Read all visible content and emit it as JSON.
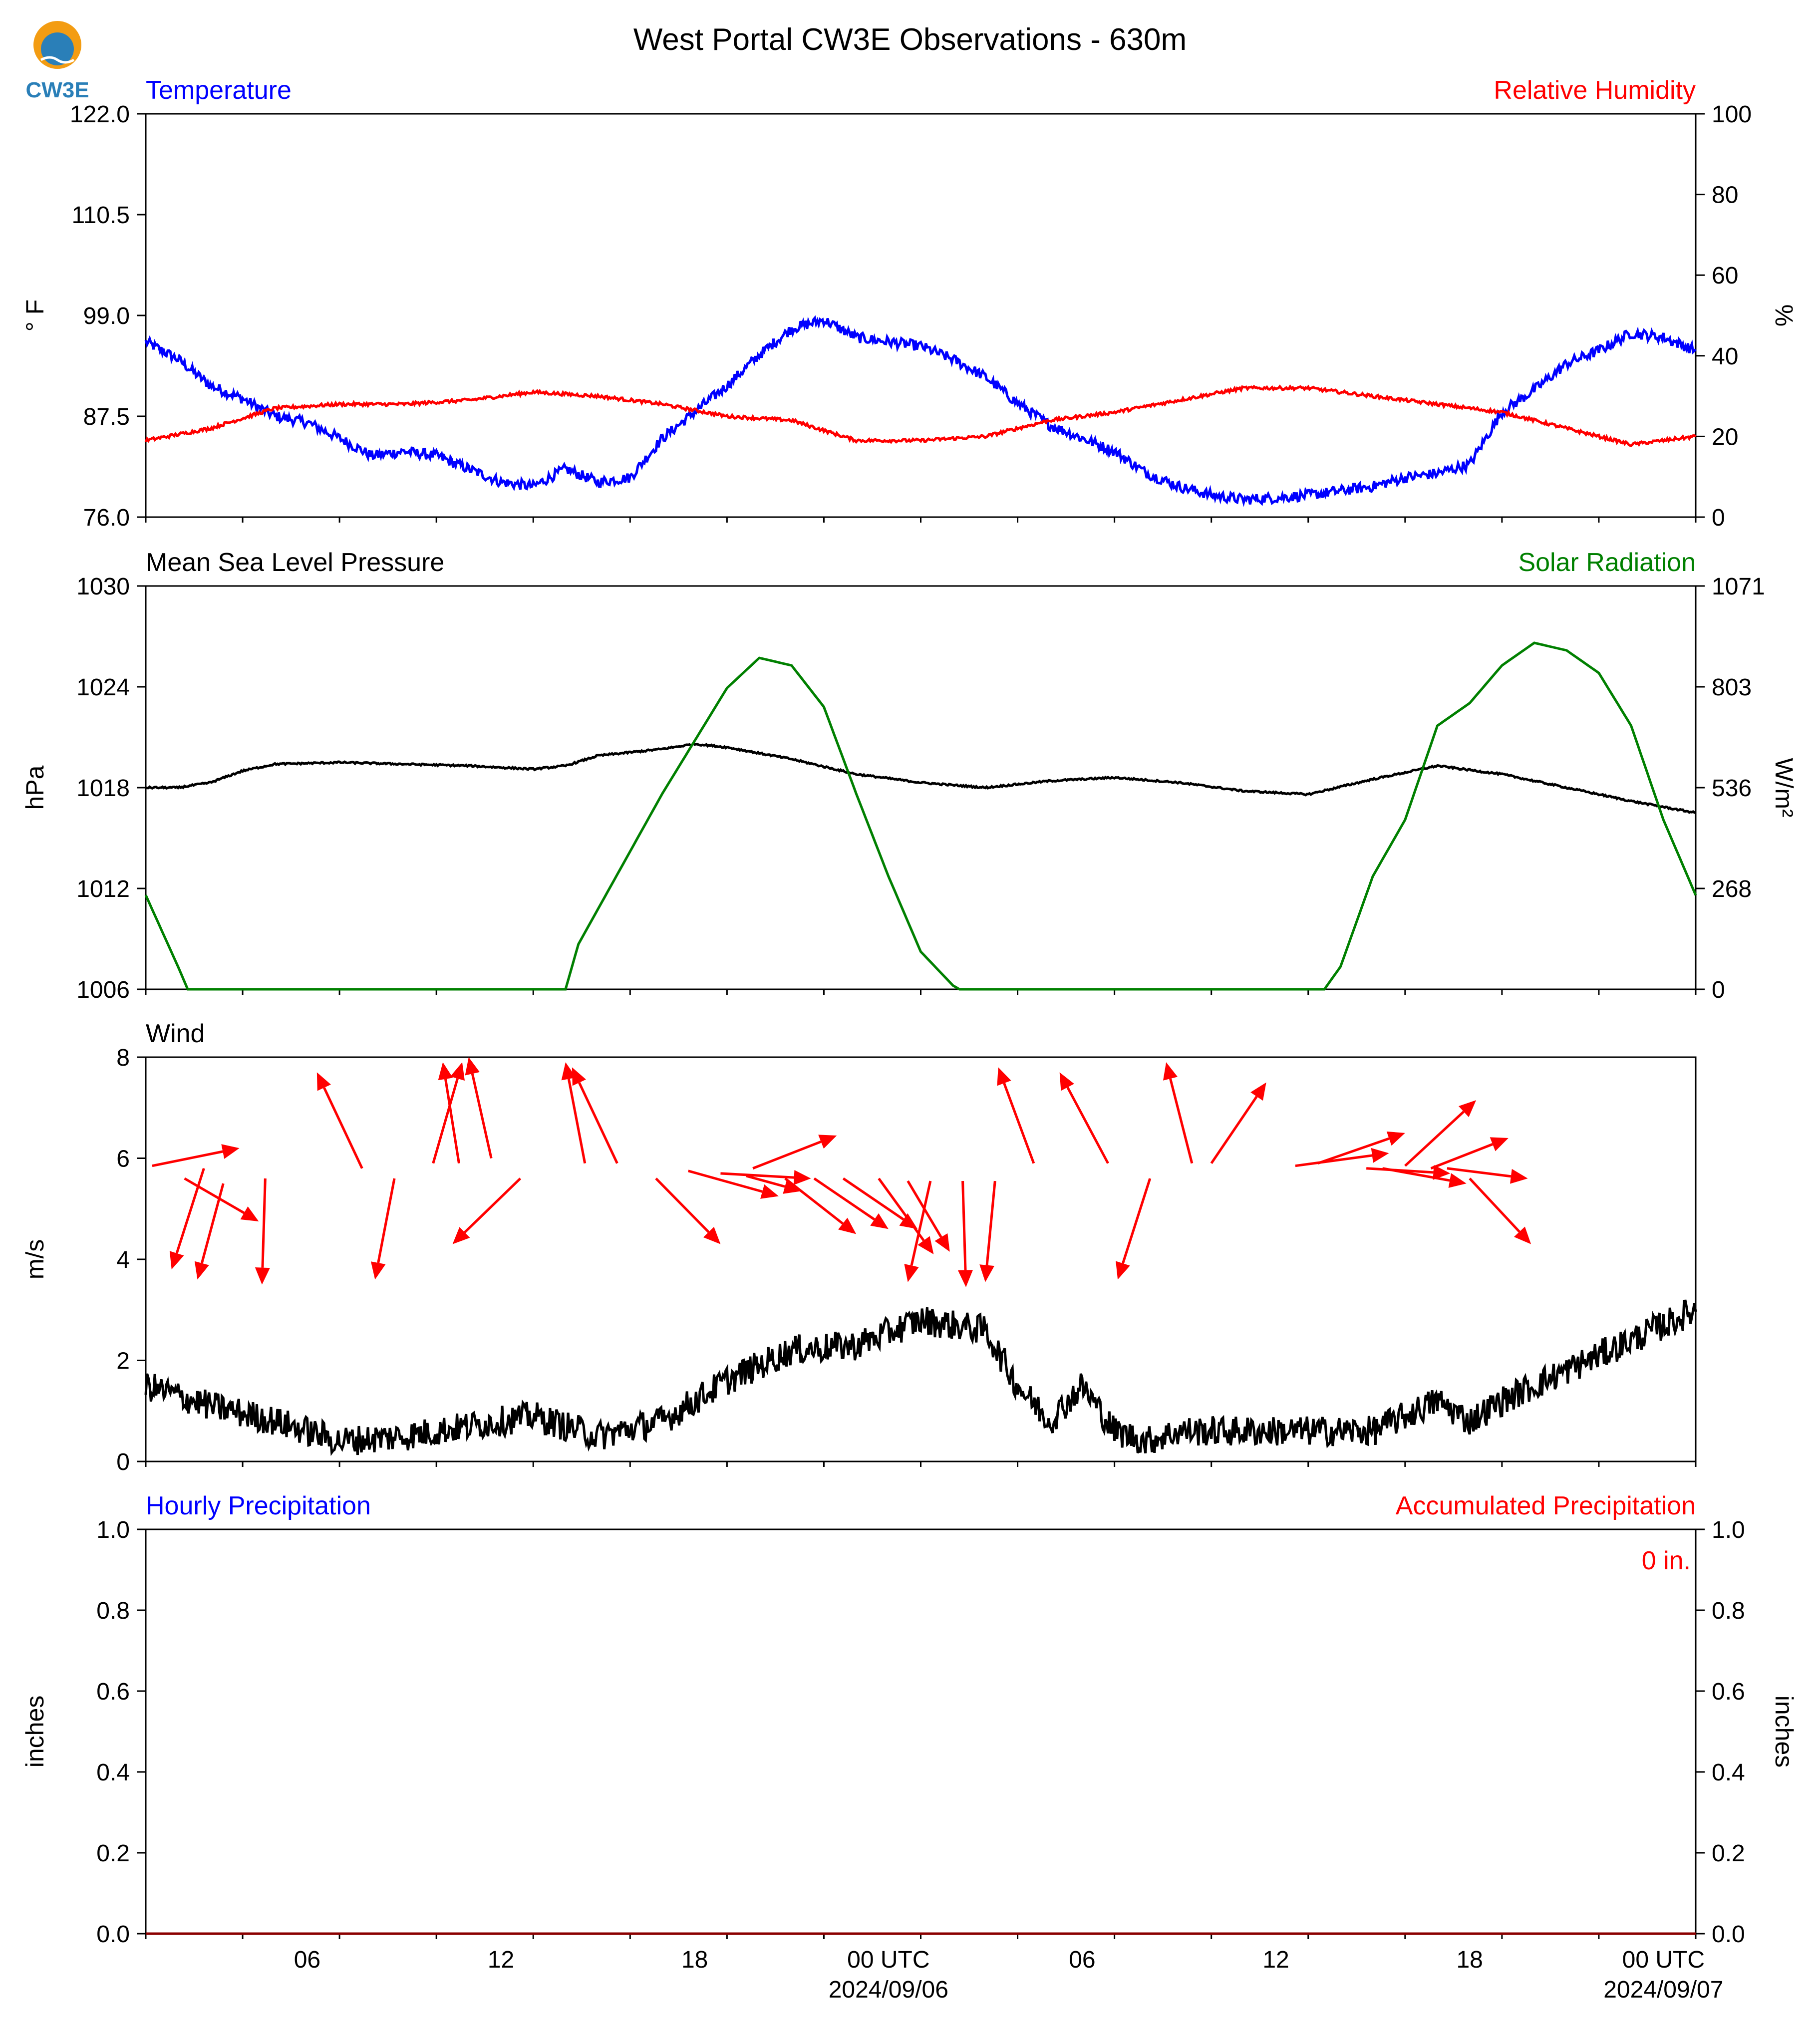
{
  "title": "West Portal CW3E Observations - 630m",
  "logo": {
    "text": "CW3E",
    "color": "#2a7fb8",
    "accent": "#f39c12"
  },
  "x_axis": {
    "range_hours_from_start": [
      0,
      48
    ],
    "tick_labels": [
      "06",
      "12",
      "18",
      "00 UTC",
      "06",
      "12",
      "18",
      "00 UTC"
    ],
    "date_labels": [
      "2024/09/06",
      "2024/09/07"
    ]
  },
  "chart_data": [
    {
      "type": "line",
      "left_title": "Temperature",
      "right_title": "Relative Humidity",
      "ylabel_left": "° F",
      "ylabel_right": "%",
      "ylim_left": [
        76.0,
        122.0
      ],
      "ylim_right": [
        0,
        100
      ],
      "yticks_left": [
        "76.0",
        "87.5",
        "99.0",
        "110.5",
        "122.0"
      ],
      "yticks_right": [
        "0",
        "20",
        "40",
        "60",
        "80",
        "100"
      ],
      "series": [
        {
          "axis": "left",
          "color": "#0000ff",
          "x": [
            0,
            1,
            2,
            3,
            4,
            5,
            6,
            7,
            8,
            9,
            10,
            11,
            12,
            13,
            14,
            15,
            16,
            17,
            18,
            19,
            20,
            21,
            22,
            23,
            24,
            25,
            26,
            27,
            28,
            29,
            30,
            31,
            32,
            33,
            34,
            35,
            36,
            37,
            38,
            39,
            40,
            41,
            42,
            43,
            44,
            45,
            46,
            47,
            48
          ],
          "values": [
            96.0,
            94.0,
            91.0,
            89.5,
            87.5,
            86.8,
            85.0,
            83.0,
            83.5,
            83.0,
            81.5,
            80.0,
            79.5,
            81.5,
            80.0,
            80.5,
            85.0,
            88.0,
            91.0,
            94.5,
            97.5,
            98.5,
            96.5,
            96.0,
            95.5,
            94.0,
            92.0,
            89.0,
            86.5,
            85.0,
            83.5,
            81.0,
            79.5,
            78.5,
            78.0,
            78.2,
            78.5,
            79.0,
            79.5,
            80.5,
            81.0,
            82.0,
            88.0,
            90.5,
            93.5,
            95.0,
            97.0,
            96.5,
            95.0
          ],
          "noise": 0.6
        },
        {
          "axis": "right",
          "color": "#ff0000",
          "x": [
            0,
            2,
            4,
            6,
            8,
            10,
            12,
            14,
            16,
            18,
            20,
            22,
            24,
            26,
            28,
            30,
            32,
            34,
            36,
            38,
            40,
            42,
            44,
            46,
            48
          ],
          "values": [
            19,
            22,
            27,
            28,
            28,
            29,
            31,
            30,
            28,
            25,
            24,
            19,
            19,
            20,
            24,
            26,
            29,
            32,
            32,
            30,
            28,
            26,
            22,
            18,
            20
          ],
          "noise": 0.4
        }
      ]
    },
    {
      "type": "line",
      "left_title": "Mean Sea Level Pressure",
      "right_title": "Solar Radiation",
      "ylabel_left": "hPa",
      "ylabel_right": "W/m²",
      "ylim_left": [
        1006,
        1030
      ],
      "ylim_right": [
        0,
        1071
      ],
      "yticks_left": [
        "1006",
        "1012",
        "1018",
        "1024",
        "1030"
      ],
      "yticks_right": [
        "0",
        "268",
        "536",
        "803",
        "1071"
      ],
      "series": [
        {
          "axis": "left",
          "color": "#000000",
          "x": [
            0,
            1,
            2,
            3,
            4,
            6,
            8,
            10,
            12,
            13,
            14,
            16,
            17,
            18,
            20,
            22,
            24,
            26,
            28,
            30,
            32,
            34,
            36,
            38,
            40,
            42,
            44,
            46,
            48
          ],
          "values": [
            1018.0,
            1018.0,
            1018.3,
            1019.0,
            1019.4,
            1019.5,
            1019.4,
            1019.3,
            1019.1,
            1019.3,
            1019.9,
            1020.3,
            1020.6,
            1020.4,
            1019.7,
            1018.8,
            1018.3,
            1018.0,
            1018.4,
            1018.6,
            1018.3,
            1017.8,
            1017.6,
            1018.5,
            1019.3,
            1018.8,
            1018.0,
            1017.2,
            1016.5
          ],
          "noise": 0.05
        },
        {
          "axis": "right",
          "color": "#008000",
          "x": [
            0,
            1,
            1.3,
            13,
            13.4,
            16,
            18,
            19,
            20,
            21,
            22,
            23,
            24,
            25,
            25.2,
            36.5,
            37,
            38,
            39,
            40,
            41,
            42,
            43,
            44,
            45,
            46,
            47,
            48
          ],
          "values": [
            250,
            60,
            0,
            0,
            120,
            520,
            800,
            880,
            860,
            750,
            520,
            300,
            100,
            10,
            0,
            0,
            60,
            300,
            450,
            700,
            760,
            860,
            920,
            900,
            840,
            700,
            450,
            250
          ],
          "noise": 0
        }
      ]
    },
    {
      "type": "line",
      "left_title": "Wind",
      "ylabel_left": "m/s",
      "ylim_left": [
        0,
        8
      ],
      "yticks_left": [
        "0",
        "2",
        "4",
        "6",
        "8"
      ],
      "series": [
        {
          "axis": "left",
          "color": "#000000",
          "x": [
            0,
            2,
            4,
            6,
            8,
            10,
            12,
            14,
            16,
            18,
            20,
            22,
            24,
            26,
            27,
            28,
            29,
            30,
            31,
            32,
            34,
            36,
            38,
            40,
            41,
            42,
            44,
            46,
            48
          ],
          "values": [
            1.5,
            1.1,
            0.8,
            0.4,
            0.5,
            0.7,
            0.9,
            0.5,
            0.8,
            1.6,
            2.2,
            2.3,
            2.8,
            2.6,
            1.5,
            0.8,
            1.5,
            0.6,
            0.4,
            0.6,
            0.6,
            0.6,
            0.6,
            1.2,
            0.8,
            1.2,
            1.8,
            2.4,
            3.0
          ],
          "noise": 0.3
        }
      ],
      "arrows_color": "#ff0000",
      "arrows": [
        {
          "x": 0.2,
          "y": 5.85,
          "dx": 2.7,
          "dy": 0.35
        },
        {
          "x": 1.2,
          "y": 5.6,
          "dx": 2.3,
          "dy": -0.85
        },
        {
          "x": 1.8,
          "y": 5.8,
          "dx": -1.0,
          "dy": -2.0
        },
        {
          "x": 2.4,
          "y": 5.5,
          "dx": -0.8,
          "dy": -1.9
        },
        {
          "x": 3.7,
          "y": 5.6,
          "dx": -0.1,
          "dy": -2.1
        },
        {
          "x": 6.7,
          "y": 5.8,
          "dx": -1.4,
          "dy": 1.9
        },
        {
          "x": 7.7,
          "y": 5.6,
          "dx": -0.6,
          "dy": -2.0
        },
        {
          "x": 8.9,
          "y": 5.9,
          "dx": 0.9,
          "dy": 2.0
        },
        {
          "x": 9.7,
          "y": 5.9,
          "dx": -0.5,
          "dy": 2.0
        },
        {
          "x": 10.7,
          "y": 6.0,
          "dx": -0.7,
          "dy": 2.0
        },
        {
          "x": 11.6,
          "y": 5.6,
          "dx": -2.1,
          "dy": -1.3
        },
        {
          "x": 13.6,
          "y": 5.9,
          "dx": -0.6,
          "dy": 2.0
        },
        {
          "x": 14.6,
          "y": 5.9,
          "dx": -1.4,
          "dy": 1.9
        },
        {
          "x": 15.8,
          "y": 5.6,
          "dx": 2.0,
          "dy": -1.3
        },
        {
          "x": 16.8,
          "y": 5.75,
          "dx": 2.8,
          "dy": -0.5
        },
        {
          "x": 17.8,
          "y": 5.7,
          "dx": 2.8,
          "dy": -0.1
        },
        {
          "x": 18.6,
          "y": 5.65,
          "dx": 1.7,
          "dy": -0.3
        },
        {
          "x": 18.8,
          "y": 5.8,
          "dx": 2.6,
          "dy": 0.65
        },
        {
          "x": 19.8,
          "y": 5.6,
          "dx": 2.2,
          "dy": -1.1
        },
        {
          "x": 20.7,
          "y": 5.6,
          "dx": 2.3,
          "dy": -1.0
        },
        {
          "x": 21.6,
          "y": 5.6,
          "dx": 2.3,
          "dy": -1.0
        },
        {
          "x": 22.7,
          "y": 5.6,
          "dx": 1.7,
          "dy": -1.5
        },
        {
          "x": 23.6,
          "y": 5.55,
          "dx": 1.3,
          "dy": -1.4
        },
        {
          "x": 24.3,
          "y": 5.55,
          "dx": -0.7,
          "dy": -2.0
        },
        {
          "x": 25.3,
          "y": 5.55,
          "dx": 0.1,
          "dy": -2.1
        },
        {
          "x": 26.3,
          "y": 5.55,
          "dx": -0.3,
          "dy": -2.0
        },
        {
          "x": 27.5,
          "y": 5.9,
          "dx": -1.1,
          "dy": 1.9
        },
        {
          "x": 29.8,
          "y": 5.9,
          "dx": -1.5,
          "dy": 1.8
        },
        {
          "x": 31.1,
          "y": 5.6,
          "dx": -1.0,
          "dy": -2.0
        },
        {
          "x": 32.4,
          "y": 5.9,
          "dx": -0.8,
          "dy": 2.0
        },
        {
          "x": 33.0,
          "y": 5.9,
          "dx": 1.7,
          "dy": 1.6
        },
        {
          "x": 35.6,
          "y": 5.85,
          "dx": 2.9,
          "dy": 0.25
        },
        {
          "x": 36.3,
          "y": 5.9,
          "dx": 2.7,
          "dy": 0.6
        },
        {
          "x": 37.8,
          "y": 5.8,
          "dx": 2.6,
          "dy": -0.1
        },
        {
          "x": 38.3,
          "y": 5.8,
          "dx": 2.6,
          "dy": -0.3
        },
        {
          "x": 39.0,
          "y": 5.85,
          "dx": 2.2,
          "dy": 1.3
        },
        {
          "x": 39.8,
          "y": 5.8,
          "dx": 2.4,
          "dy": 0.6
        },
        {
          "x": 40.3,
          "y": 5.8,
          "dx": 2.5,
          "dy": -0.2
        },
        {
          "x": 41.0,
          "y": 5.6,
          "dx": 1.9,
          "dy": -1.3
        }
      ]
    },
    {
      "type": "line",
      "left_title": "Hourly Precipitation",
      "right_title": "Accumulated Precipitation",
      "ylabel_left": "inches",
      "ylabel_right": "inches",
      "ylim_left": [
        0.0,
        1.0
      ],
      "ylim_right": [
        0.0,
        1.0
      ],
      "yticks_left": [
        "0.0",
        "0.2",
        "0.4",
        "0.6",
        "0.8",
        "1.0"
      ],
      "yticks_right": [
        "0.0",
        "0.2",
        "0.4",
        "0.6",
        "0.8",
        "1.0"
      ],
      "annotation": "0 in.",
      "series": [
        {
          "axis": "left",
          "color": "#0000ff",
          "x": [
            0,
            48
          ],
          "values": [
            0,
            0
          ],
          "noise": 0
        },
        {
          "axis": "right",
          "color": "#8b0000",
          "x": [
            0,
            48
          ],
          "values": [
            0,
            0
          ],
          "noise": 0
        }
      ]
    }
  ]
}
